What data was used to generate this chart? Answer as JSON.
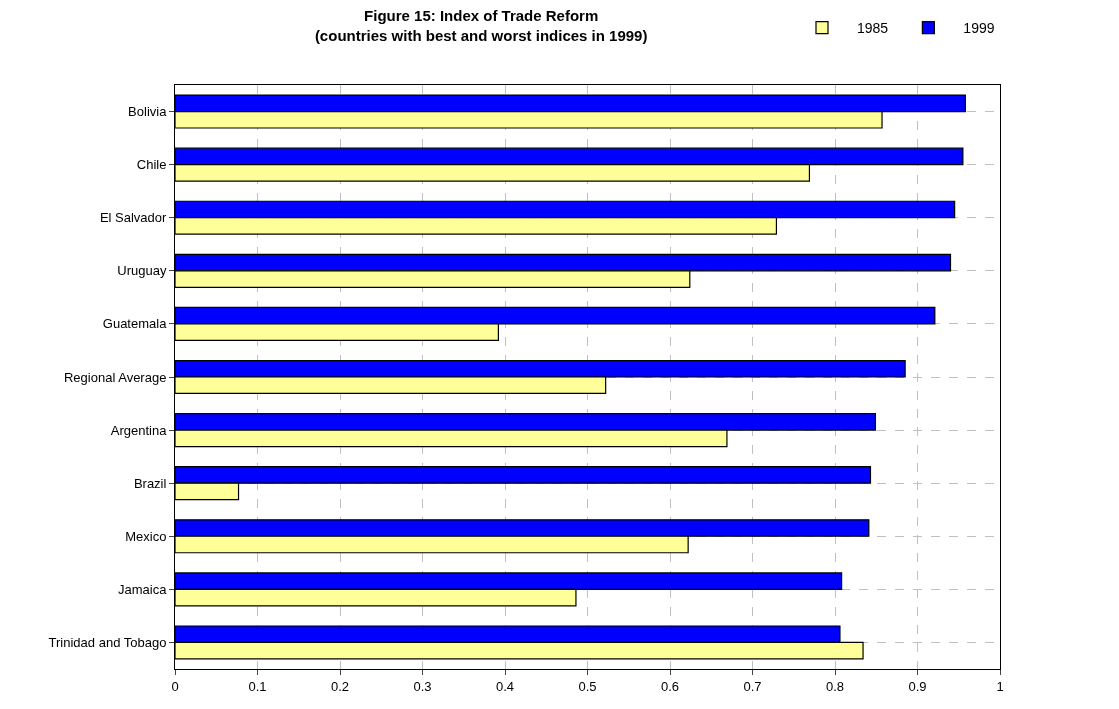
{
  "chart_data": {
    "type": "bar",
    "orientation": "horizontal",
    "title": "Figure 15: Index of Trade Reform",
    "subtitle": "(countries with best and worst indices in 1999)",
    "categories": [
      "Bolivia",
      "Chile",
      "El Salvador",
      "Uruguay",
      "Guatemala",
      "Regional Average",
      "Argentina",
      "Brazil",
      "Mexico",
      "Jamaica",
      "Trinidad and Tobago"
    ],
    "series": [
      {
        "name": "1985",
        "color": "#ffff99",
        "values": [
          0.857,
          0.769,
          0.729,
          0.624,
          0.392,
          0.522,
          0.669,
          0.077,
          0.622,
          0.486,
          0.834
        ]
      },
      {
        "name": "1999",
        "color": "#0000ff",
        "values": [
          0.958,
          0.955,
          0.945,
          0.94,
          0.921,
          0.885,
          0.849,
          0.843,
          0.841,
          0.808,
          0.806
        ]
      }
    ],
    "xlim": [
      0,
      1
    ],
    "xticks": [
      0,
      0.1,
      0.2,
      0.3,
      0.4,
      0.5,
      0.6,
      0.7,
      0.8,
      0.9,
      1
    ],
    "grid": true,
    "legend": "top right"
  }
}
